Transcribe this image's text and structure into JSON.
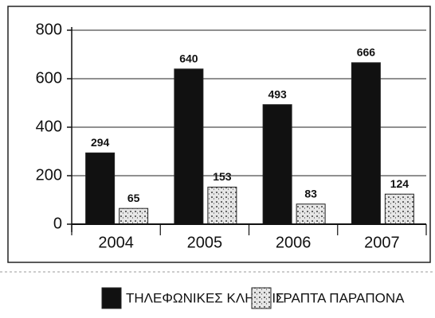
{
  "chart_data": {
    "type": "bar",
    "categories": [
      "2004",
      "2005",
      "2006",
      "2007"
    ],
    "series": [
      {
        "name": "ΤΗΛΕΦΩΝΙΚΕΣ ΚΛΗΣΕΙΣ",
        "color": "#111111",
        "values": [
          294,
          640,
          493,
          666
        ]
      },
      {
        "name": "ΓΡΑΠΤΑ ΠΑΡΑΠΟΝΑ",
        "color": "#d4d4d4",
        "values": [
          65,
          153,
          83,
          124
        ]
      }
    ],
    "ylim": [
      0,
      800
    ],
    "yticks": [
      0,
      200,
      400,
      600,
      800
    ],
    "grid": true
  }
}
